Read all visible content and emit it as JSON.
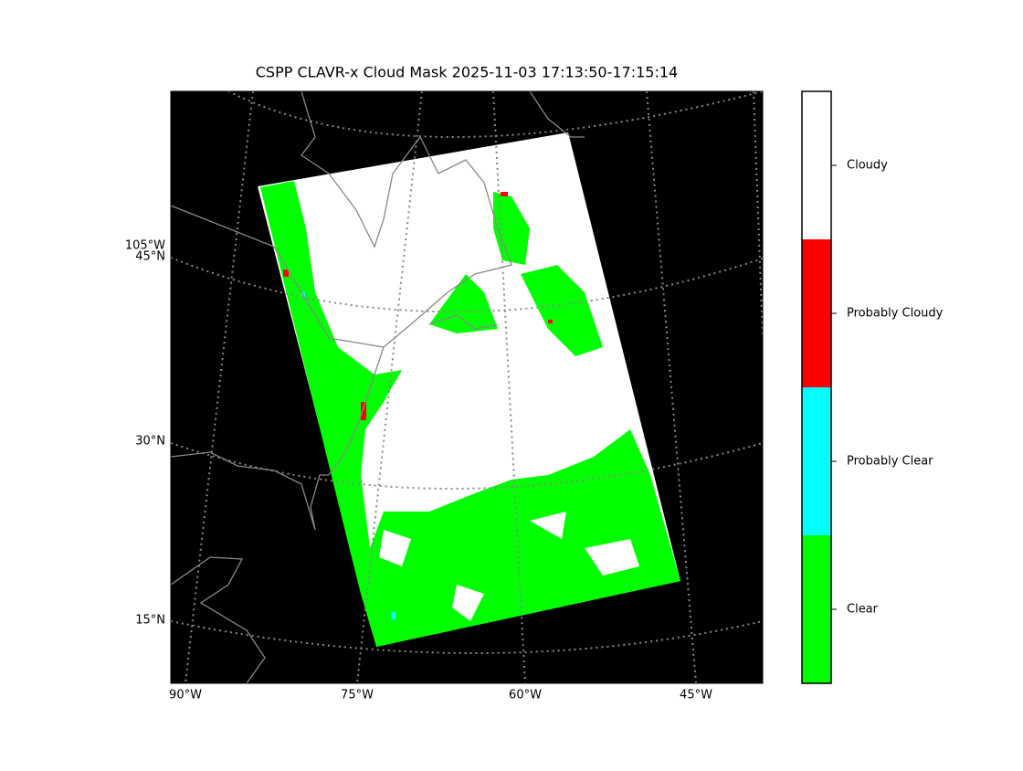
{
  "title": "CSPP CLAVR-x Cloud Mask 2025-11-03 17:13:50-17:15:14",
  "map": {
    "lon_labels": [
      "90°W",
      "75°W",
      "60°W",
      "45°W"
    ],
    "lat_labels": [
      "105°W",
      "45°N",
      "30°N",
      "15°N"
    ]
  },
  "colorbar": {
    "classes": [
      {
        "label": "Cloudy",
        "color": "#ffffff"
      },
      {
        "label": "Probably Cloudy",
        "color": "#ff0000"
      },
      {
        "label": "Probably Clear",
        "color": "#00ffff"
      },
      {
        "label": "Clear",
        "color": "#00ff00"
      }
    ]
  }
}
